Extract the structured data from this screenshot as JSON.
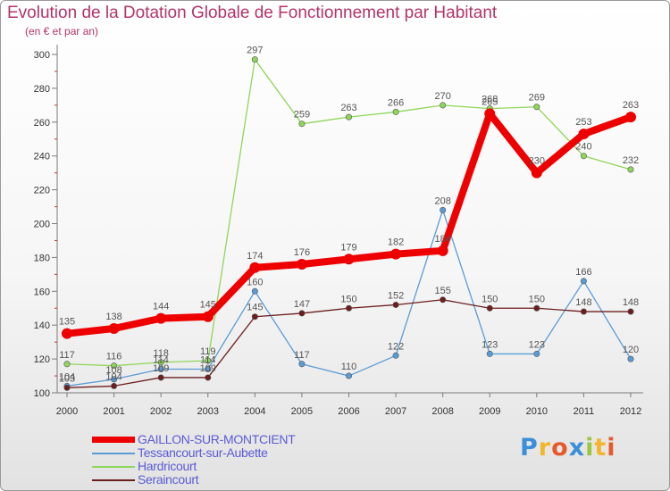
{
  "title": "Evolution de la Dotation Globale de Fonctionnement par Habitant",
  "subtitle": "(en € et par an)",
  "brand": {
    "letters": [
      "P",
      "r",
      "o",
      "x",
      "i",
      "t",
      "i"
    ],
    "colors": [
      "#3a8fd8",
      "#f3b52a",
      "#e8592a",
      "#3a8fd8",
      "#9bc83a",
      "#f3b52a",
      "#e8592a"
    ]
  },
  "chart_data": {
    "type": "line",
    "title": "Evolution de la Dotation Globale de Fonctionnement par Habitant",
    "ylabel": "(en € et par an)",
    "xlabel": "",
    "ylim": [
      100,
      300
    ],
    "y_ticks": [
      100,
      120,
      140,
      160,
      180,
      200,
      220,
      240,
      260,
      280,
      300
    ],
    "grid": false,
    "x": [
      2000,
      2001,
      2002,
      2003,
      2004,
      2005,
      2006,
      2007,
      2008,
      2009,
      2010,
      2011,
      2012
    ],
    "series": [
      {
        "name": "Hardricourt",
        "color": "#8fd65a",
        "values": [
          117,
          116,
          118,
          119,
          297,
          259,
          263,
          266,
          270,
          268,
          269,
          240,
          232
        ]
      },
      {
        "name": "Tessancourt-sur-Aubette",
        "color": "#5b9bd5",
        "values": [
          104,
          108,
          114,
          114,
          160,
          117,
          110,
          122,
          208,
          123,
          123,
          166,
          120
        ]
      },
      {
        "name": "Seraincourt",
        "color": "#6b1e1e",
        "values": [
          103,
          104,
          109,
          109,
          145,
          147,
          150,
          152,
          155,
          150,
          150,
          148,
          148
        ]
      },
      {
        "name": "GAILLON-SUR-MONTCIENT",
        "color": "#ee0000",
        "values": [
          135,
          138,
          144,
          145,
          174,
          176,
          179,
          182,
          184,
          265,
          230,
          253,
          263
        ]
      }
    ],
    "data_labels": {
      "Hardricourt": [
        "117",
        "116",
        "118",
        "119",
        "297",
        "259",
        "263",
        "266",
        "270",
        "268",
        "269",
        "240",
        "232"
      ],
      "Tessancourt-sur-Aubette": [
        "104",
        "108",
        "114",
        "114",
        "160",
        "117",
        "110",
        "122",
        "208",
        "123",
        "123",
        "166",
        "120"
      ],
      "Seraincourt": [
        "103",
        "104",
        "109",
        "109",
        "145",
        "147",
        "150",
        "152",
        "155",
        "150",
        "150",
        "148",
        "148"
      ],
      "GAILLON-SUR-MONTCIENT": [
        "135",
        "138",
        "144",
        "145",
        "174",
        "176",
        "179",
        "182",
        "184",
        "265",
        "230",
        "253",
        "263"
      ]
    },
    "legend": {
      "placement": "bottom-left",
      "entries": [
        "GAILLON-SUR-MONTCIENT",
        "Tessancourt-sur-Aubette",
        "Hardricourt",
        "Seraincourt"
      ]
    }
  }
}
